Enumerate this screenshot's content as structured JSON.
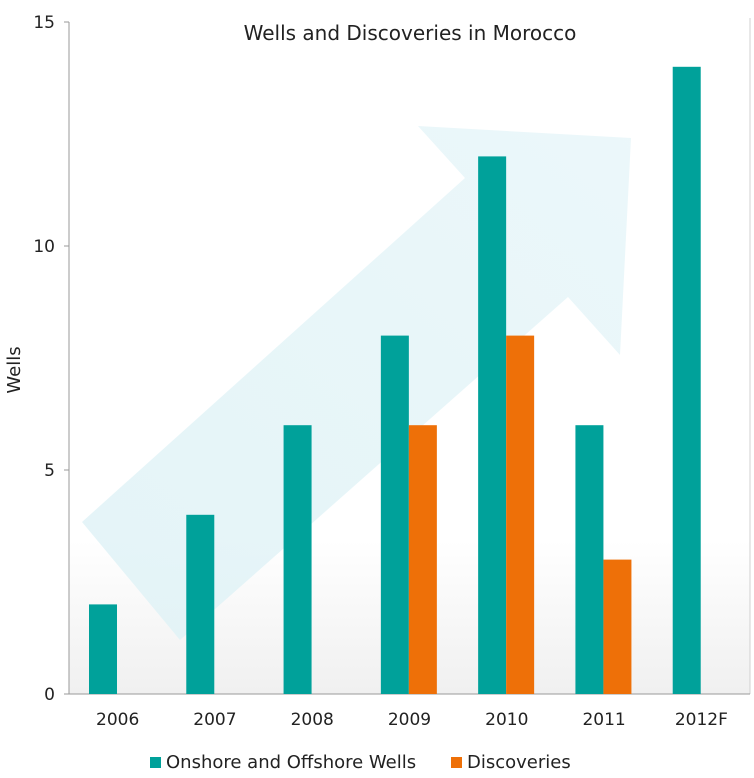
{
  "chart_data": {
    "type": "bar",
    "title": "Wells and Discoveries in Morocco",
    "xlabel": "",
    "ylabel": "Wells",
    "ylim": [
      0,
      15
    ],
    "yticks": [
      0,
      5,
      10,
      15
    ],
    "categories": [
      "2006",
      "2007",
      "2008",
      "2009",
      "2010",
      "2011",
      "2012F"
    ],
    "series": [
      {
        "name": "Onshore and Offshore Wells",
        "color": "#00A19A",
        "values": [
          2,
          4,
          6,
          8,
          12,
          6,
          14
        ]
      },
      {
        "name": "Discoveries",
        "color": "#EE7008",
        "values": [
          null,
          null,
          null,
          6,
          8,
          3,
          null
        ]
      }
    ],
    "legend_position": "bottom",
    "grid": false,
    "background_arrow": "upward-trend-arrow"
  }
}
